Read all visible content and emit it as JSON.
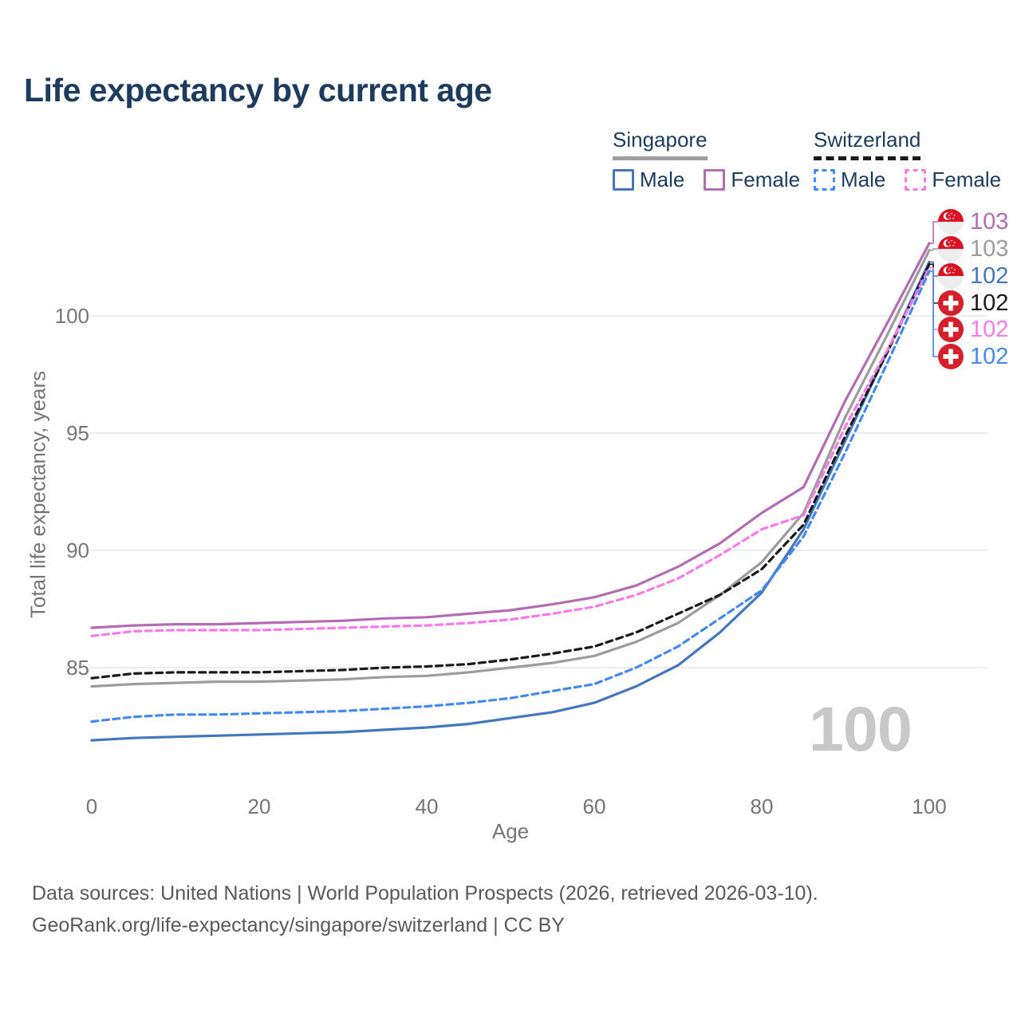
{
  "title": "Life expectancy by current age",
  "watermark": "100",
  "legend": {
    "groups": [
      {
        "label": "Singapore",
        "underline_style": "solid",
        "underline_color": "#9e9e9e",
        "items": [
          {
            "label": "Male",
            "color": "#4576bd",
            "dashed": false
          },
          {
            "label": "Female",
            "color": "#b26db2",
            "dashed": false
          }
        ]
      },
      {
        "label": "Switzerland",
        "underline_style": "dashed",
        "underline_color": "#1a1a1a",
        "items": [
          {
            "label": "Male",
            "color": "#4489f2",
            "dashed": true
          },
          {
            "label": "Female",
            "color": "#fc7ae8",
            "dashed": true
          }
        ]
      }
    ]
  },
  "chart_data": {
    "type": "line",
    "title": "Life expectancy by current age",
    "xlabel": "Age",
    "ylabel": "Total life expectancy, years",
    "xticks": [
      0,
      20,
      40,
      60,
      80,
      100
    ],
    "yticks": [
      85,
      90,
      95,
      100
    ],
    "xlim": [
      0,
      100
    ],
    "ylim": [
      81,
      104
    ],
    "grid": "horizontal",
    "legend_position": "top-right",
    "x": [
      0,
      5,
      10,
      15,
      20,
      25,
      30,
      35,
      40,
      45,
      50,
      55,
      60,
      65,
      70,
      75,
      80,
      85,
      90,
      95,
      100
    ],
    "series": [
      {
        "name": "Singapore Female",
        "country": "Singapore",
        "sex": "Female",
        "color": "#b26db2",
        "dashed": false,
        "flag": "sg",
        "end_label": "103",
        "values": [
          86.7,
          86.8,
          86.85,
          86.85,
          86.9,
          86.95,
          87.0,
          87.1,
          87.15,
          87.3,
          87.45,
          87.7,
          88.0,
          88.5,
          89.3,
          90.3,
          91.6,
          92.7,
          96.4,
          99.7,
          103.1
        ]
      },
      {
        "name": "Singapore Both sexes",
        "country": "Singapore",
        "sex": "Both",
        "color": "#9c9c9c",
        "dashed": false,
        "flag": "sg",
        "end_label": "103",
        "values": [
          84.2,
          84.3,
          84.35,
          84.4,
          84.4,
          84.45,
          84.5,
          84.6,
          84.65,
          84.8,
          85.0,
          85.2,
          85.5,
          86.1,
          86.9,
          88.1,
          89.5,
          91.6,
          95.7,
          99.2,
          102.8
        ]
      },
      {
        "name": "Singapore Male",
        "country": "Singapore",
        "sex": "Male",
        "color": "#4576bd",
        "dashed": false,
        "flag": "sg",
        "end_label": "102",
        "values": [
          81.9,
          82.0,
          82.05,
          82.1,
          82.15,
          82.2,
          82.25,
          82.35,
          82.45,
          82.6,
          82.85,
          83.1,
          83.5,
          84.2,
          85.1,
          86.5,
          88.2,
          90.9,
          94.7,
          98.5,
          102.3
        ]
      },
      {
        "name": "Switzerland Both sexes",
        "country": "Switzerland",
        "sex": "Both",
        "color": "#1a1a1a",
        "dashed": true,
        "flag": "ch",
        "end_label": "102",
        "values": [
          84.55,
          84.75,
          84.8,
          84.8,
          84.8,
          84.85,
          84.9,
          85.0,
          85.05,
          85.15,
          85.35,
          85.6,
          85.9,
          86.5,
          87.3,
          88.1,
          89.2,
          91.1,
          94.9,
          98.45,
          102.2
        ]
      },
      {
        "name": "Switzerland Female",
        "country": "Switzerland",
        "sex": "Female",
        "color": "#fc7ae8",
        "dashed": true,
        "flag": "ch",
        "end_label": "102",
        "values": [
          86.35,
          86.55,
          86.6,
          86.6,
          86.6,
          86.65,
          86.7,
          86.75,
          86.8,
          86.9,
          87.05,
          87.3,
          87.6,
          88.1,
          88.8,
          89.8,
          90.9,
          91.5,
          95.3,
          98.55,
          102.05
        ]
      },
      {
        "name": "Switzerland Male",
        "country": "Switzerland",
        "sex": "Male",
        "color": "#4489f2",
        "dashed": true,
        "flag": "ch",
        "end_label": "102",
        "values": [
          82.7,
          82.9,
          83.0,
          83.0,
          83.05,
          83.1,
          83.15,
          83.25,
          83.35,
          83.5,
          83.7,
          84.0,
          84.3,
          85.0,
          85.9,
          87.1,
          88.3,
          90.6,
          94.2,
          98.0,
          101.9
        ]
      }
    ]
  },
  "footer": {
    "line1": "Data sources: United Nations | World Population Prospects (2026, retrieved 2026-03-10).",
    "line2": "GeoRank.org/life-expectancy/singapore/switzerland | CC BY"
  },
  "colors": {
    "title": "#1d3a5f",
    "axis_text": "#757575",
    "gridline": "#e7e7e7",
    "watermark": "#c8c8c8",
    "footer_text": "#595959",
    "singapore_flag_red": "#da1224",
    "swiss_flag_red": "#d5202c"
  }
}
